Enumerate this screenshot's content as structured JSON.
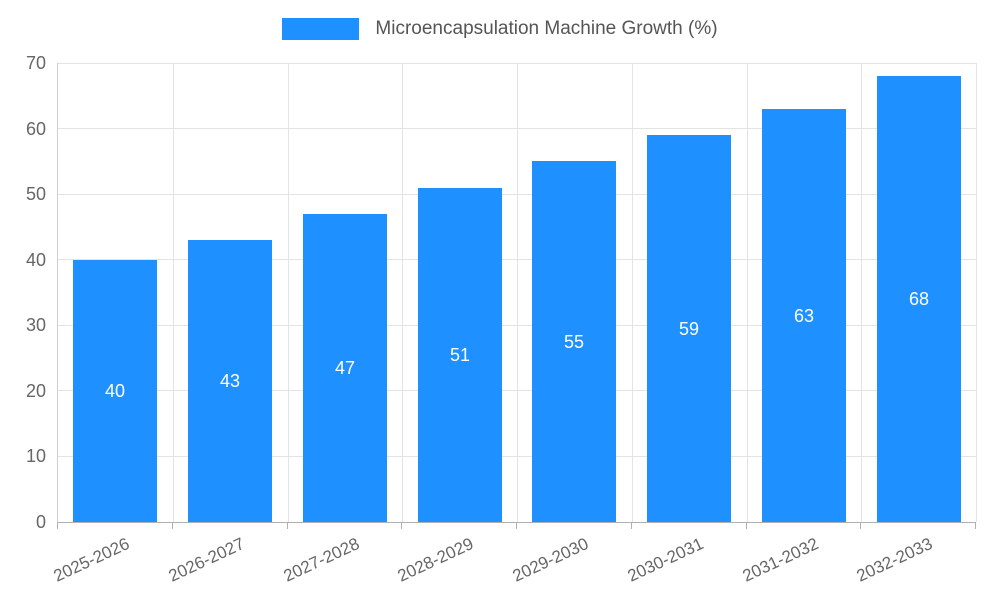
{
  "legend": {
    "label": "Microencapsulation Machine Growth (%)",
    "swatch_color": "#1E90FF"
  },
  "chart_data": {
    "type": "bar",
    "title": "Microencapsulation Machine Growth (%)",
    "categories": [
      "2025-2026",
      "2026-2027",
      "2027-2028",
      "2028-2029",
      "2029-2030",
      "2030-2031",
      "2031-2032",
      "2032-2033"
    ],
    "values": [
      40,
      43,
      47,
      51,
      55,
      59,
      63,
      68
    ],
    "xlabel": "",
    "ylabel": "",
    "ylim": [
      0,
      70
    ],
    "yticks": [
      0,
      10,
      20,
      30,
      40,
      50,
      60,
      70
    ],
    "grid": true,
    "legend_position": "top-center",
    "bar_color": "#1E90FF",
    "value_label_color": "#ffffff",
    "axis_text_color": "#666666",
    "grid_color": "#e3e3e3"
  }
}
